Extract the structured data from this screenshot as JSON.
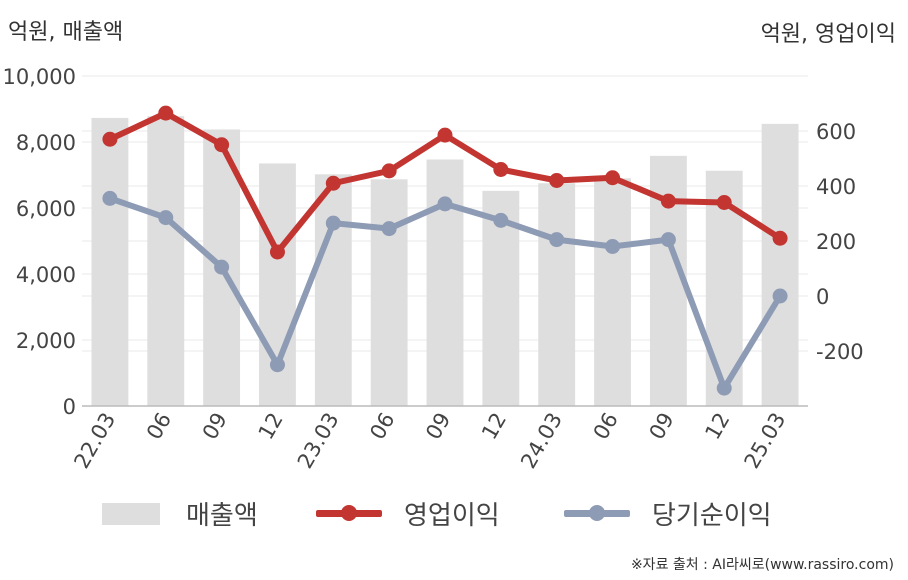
{
  "units": {
    "left": "억원, 매출액",
    "right": "억원, 영업이익"
  },
  "legend": {
    "sales": "매출액",
    "operating": "영업이익",
    "net": "당기순이익"
  },
  "source": "※자료 출처 : AI라씨로(www.rassiro.com)",
  "colors": {
    "bar": "#dedede",
    "operating": "#c23531",
    "net": "#8e9bb5",
    "grid": "#e8e8e8",
    "axis": "#bbbbbb"
  },
  "chart_data": {
    "type": "bar",
    "categories": [
      "22.03",
      "06",
      "09",
      "12",
      "23.03",
      "06",
      "09",
      "12",
      "24.03",
      "06",
      "09",
      "12",
      "25.03"
    ],
    "left_axis": {
      "ylim": [
        0,
        10000
      ],
      "ticks": [
        0,
        2000,
        4000,
        6000,
        8000,
        10000
      ],
      "tick_labels": [
        "0",
        "2,000",
        "4,000",
        "6,000",
        "8,000",
        "10,000"
      ]
    },
    "right_axis": {
      "ylim": [
        -400,
        800
      ],
      "ticks": [
        -200,
        0,
        200,
        400,
        600
      ],
      "tick_labels": [
        "-200",
        "0",
        "200",
        "400",
        "600"
      ]
    },
    "series": [
      {
        "name": "매출액",
        "type": "bar",
        "axis": "left",
        "values": [
          8730,
          8780,
          8380,
          7350,
          7020,
          6870,
          7470,
          6520,
          6750,
          6900,
          7580,
          7130,
          8550
        ]
      },
      {
        "name": "영업이익",
        "type": "line",
        "axis": "right",
        "values": [
          570,
          665,
          550,
          160,
          410,
          455,
          585,
          460,
          420,
          430,
          345,
          340,
          210
        ]
      },
      {
        "name": "당기순이익",
        "type": "line",
        "axis": "right",
        "values": [
          355,
          285,
          105,
          -250,
          265,
          245,
          335,
          275,
          205,
          180,
          205,
          -335,
          0
        ]
      }
    ],
    "grid": true,
    "legend_position": "bottom"
  }
}
